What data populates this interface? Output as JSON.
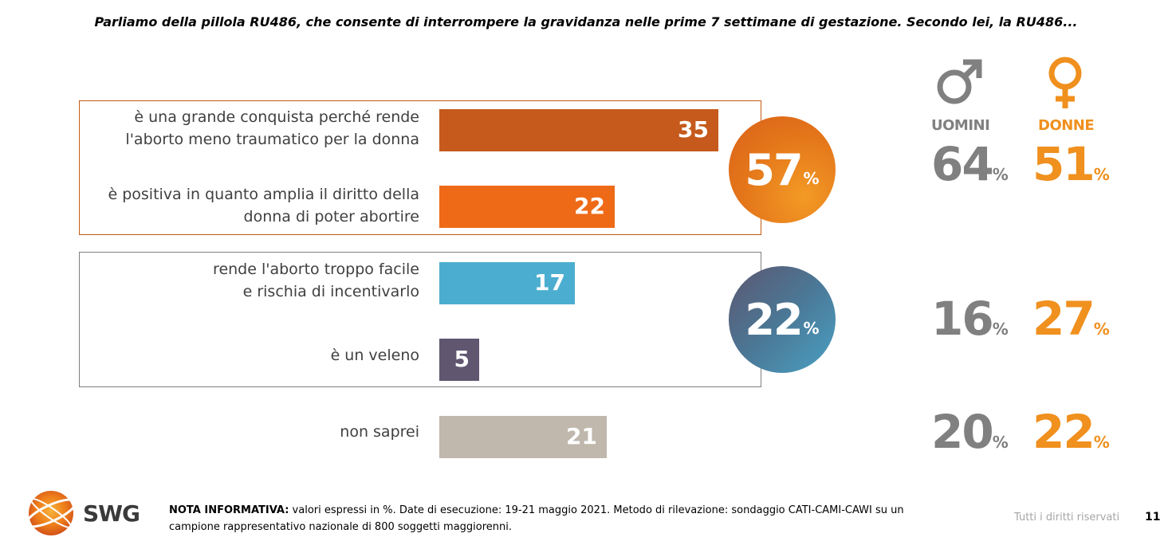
{
  "question": "Parliamo della pillola RU486, che consente di interrompere la gravidanza nelle prime 7 settimane di gestazione. Secondo lei, la RU486...",
  "chart_data": {
    "type": "bar",
    "orientation": "horizontal",
    "categories": [
      "è una grande conquista perché rende l'aborto meno traumatico per la donna",
      "è positiva in quanto amplia il diritto della donna di poter abortire",
      "rende l'aborto troppo facile e rischia di incentivarlo",
      "è un veleno",
      "non saprei"
    ],
    "values": [
      35,
      22,
      17,
      5,
      21
    ],
    "value_labels": [
      "35",
      "22",
      "17",
      "5",
      "21"
    ],
    "colors": [
      "#c55a1c",
      "#ee6a17",
      "#4baed0",
      "#605670",
      "#c0b7ad"
    ],
    "xlim": [
      0,
      40
    ]
  },
  "labels": {
    "l1a": "è una grande conquista perché rende",
    "l1b": "l'aborto meno traumatico per la donna",
    "l2a": "è positiva in quanto amplia il diritto della",
    "l2b": "donna di poter abortire",
    "l3a": "rende l'aborto troppo facile",
    "l3b": "e rischia di incentivarlo",
    "l4": "è un veleno",
    "l5": "non saprei"
  },
  "totals": {
    "positive": "57",
    "negative": "22",
    "pct": "%"
  },
  "gender": {
    "men_label": "UOMINI",
    "women_label": "DONNE",
    "rows": [
      {
        "men": "64",
        "women": "51"
      },
      {
        "men": "16",
        "women": "27"
      },
      {
        "men": "20",
        "women": "22"
      }
    ],
    "pct": "%",
    "men_color": "#808080",
    "women_color": "#f0901e"
  },
  "footer": {
    "note_bold": "NOTA INFORMATIVA:",
    "note_line1": " valori espressi in %. Date di esecuzione: 19-21 maggio 2021. Metodo di rilevazione: sondaggio CATI-CAMI-CAWI su un",
    "note_line2": "campione rappresentativo nazionale di 800 soggetti maggiorenni.",
    "rights": "Tutti i diritti riservati",
    "page": "11",
    "logo": "SWG"
  }
}
